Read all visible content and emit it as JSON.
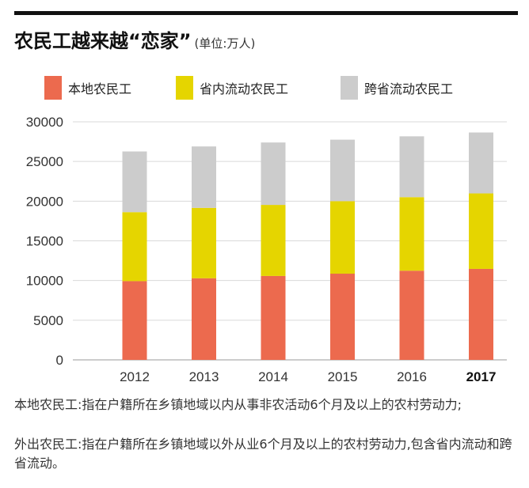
{
  "title": "农民工越来越“恋家”",
  "unit": "(单位:万人)",
  "chart_data": {
    "type": "bar",
    "stacked": true,
    "categories": [
      "2012",
      "2013",
      "2014",
      "2015",
      "2016",
      "2017"
    ],
    "highlight_category": "2017",
    "series": [
      {
        "name": "本地农民工",
        "color": "#ec6a4e",
        "values": [
          9925,
          10284,
          10574,
          10863,
          11237,
          11467
        ]
      },
      {
        "name": "省内流动农民工",
        "color": "#e5d500",
        "values": [
          8689,
          8871,
          8954,
          9139,
          9268,
          9510
        ]
      },
      {
        "name": "跨省流动农民工",
        "color": "#cccccc",
        "values": [
          7647,
          7739,
          7867,
          7745,
          7666,
          7675
        ]
      }
    ],
    "ylim": [
      0,
      30000
    ],
    "yticks": [
      0,
      5000,
      10000,
      15000,
      20000,
      25000,
      30000
    ],
    "grid": true,
    "legend_position": "top"
  },
  "notes": [
    "本地农民工:指在户籍所在乡镇地域以内从事非农活动6个月及以上的农村劳动力;",
    "外出农民工:指在户籍所在乡镇地域以外从业6个月及以上的农村劳动力,包含省内流动和跨省流动。"
  ]
}
